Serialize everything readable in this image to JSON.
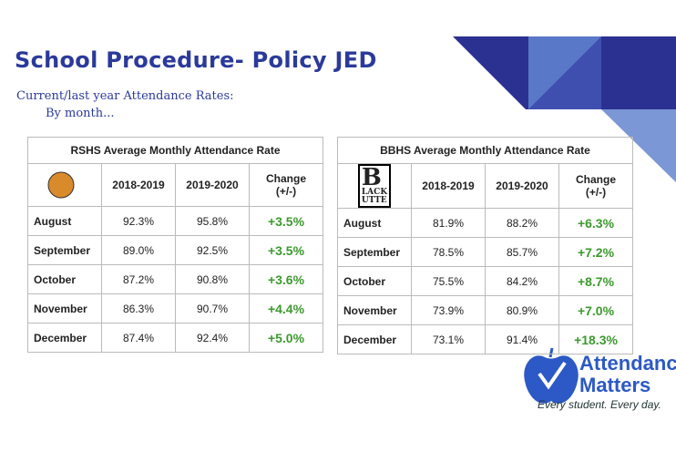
{
  "title": "School Procedure- Policy JED",
  "subtitle": [
    "Current/last year  Attendance Rates:",
    "By month..."
  ],
  "tables": [
    {
      "title": "RSHS Average Monthly Attendance Rate",
      "headers": [
        [
          "2018-2019"
        ],
        [
          "2019-2020"
        ],
        [
          "Change",
          "(+/-)"
        ]
      ],
      "rows": [
        [
          "August",
          "92.3%",
          "95.8%",
          "+3.5%"
        ],
        [
          "September",
          "89.0%",
          "92.5%",
          "+3.5%"
        ],
        [
          "October",
          "87.2%",
          "90.8%",
          "+3.6%"
        ],
        [
          "November",
          "86.3%",
          "90.7%",
          "+4.4%"
        ],
        [
          "December",
          "87.4%",
          "92.4%",
          "+5.0%"
        ]
      ]
    },
    {
      "title": "BBHS Average Monthly Attendance Rate",
      "badge": [
        "B",
        "LACK",
        "UTTE"
      ],
      "headers": [
        [
          "2018-2019"
        ],
        [
          "2019-2020"
        ],
        [
          "Change",
          "(+/-)"
        ]
      ],
      "rows": [
        [
          "August",
          "81.9%",
          "88.2%",
          "+6.3%"
        ],
        [
          "September",
          "78.5%",
          "85.7%",
          "+7.2%"
        ],
        [
          "October",
          "75.5%",
          "84.2%",
          "+8.7%"
        ],
        [
          "November",
          "73.9%",
          "80.9%",
          "+7.0%"
        ],
        [
          "December",
          "73.1%",
          "91.4%",
          "+18.3%"
        ]
      ]
    }
  ],
  "logo": {
    "line1": "Attendance",
    "line2": "Matters",
    "tagline": "Every student. Every day."
  }
}
